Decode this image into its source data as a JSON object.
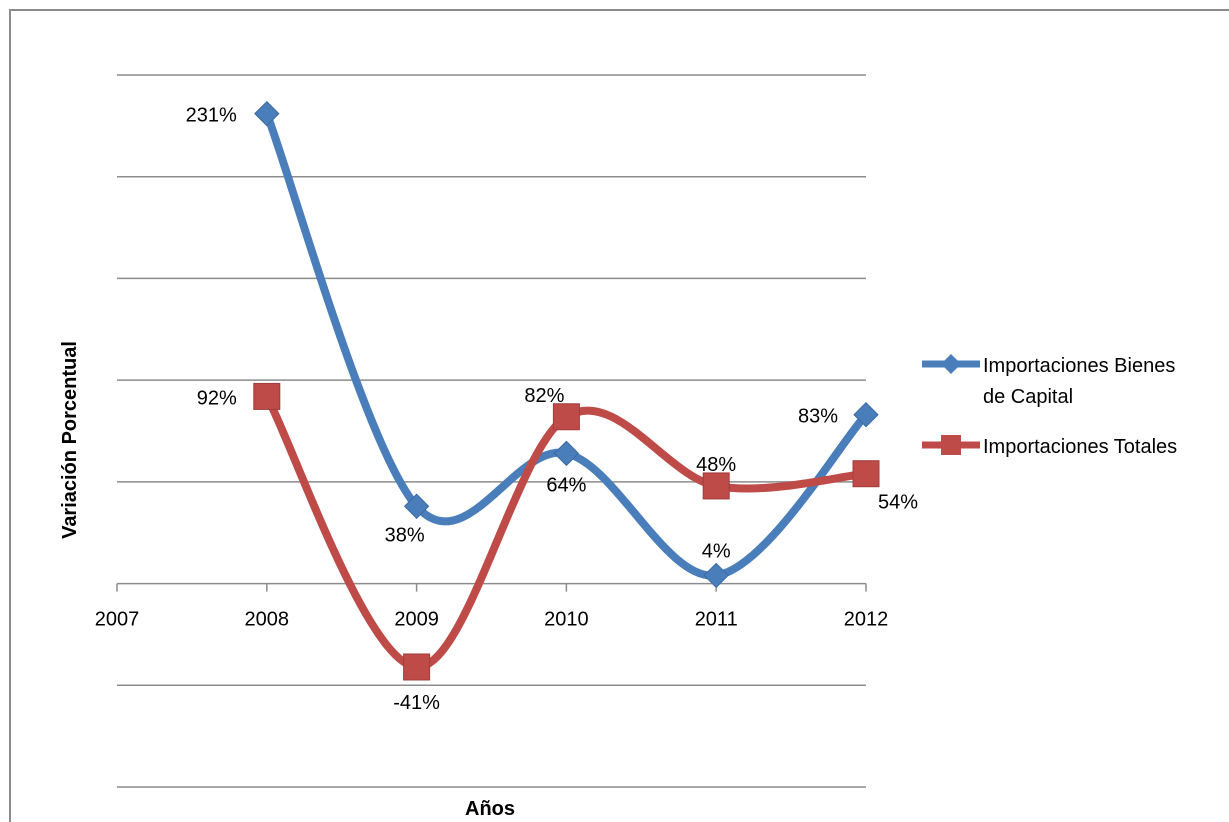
{
  "chart_data": {
    "type": "line",
    "xlabel": "Años",
    "ylabel": "Variación Porcentual",
    "x": [
      2007,
      2008,
      2009,
      2010,
      2011,
      2012
    ],
    "series": [
      {
        "name": "Importaciones Bienes de Capital",
        "name_lines": [
          "Importaciones Bienes",
          "de Capital"
        ],
        "color": "#4a7ebb",
        "marker": "diamond",
        "points": [
          {
            "x": 2008,
            "y": 231,
            "label": "231%"
          },
          {
            "x": 2009,
            "y": 38,
            "label": "38%"
          },
          {
            "x": 2010,
            "y": 64,
            "label": "64%"
          },
          {
            "x": 2011,
            "y": 4,
            "label": "4%"
          },
          {
            "x": 2012,
            "y": 83,
            "label": "83%"
          }
        ]
      },
      {
        "name": "Importaciones Totales",
        "color": "#be4b48",
        "marker": "square",
        "points": [
          {
            "x": 2008,
            "y": 92,
            "label": "92%"
          },
          {
            "x": 2009,
            "y": -41,
            "label": "-41%"
          },
          {
            "x": 2010,
            "y": 82,
            "label": "82%"
          },
          {
            "x": 2011,
            "y": 48,
            "label": "48%"
          },
          {
            "x": 2012,
            "y": 54,
            "label": "54%"
          }
        ]
      }
    ],
    "ylim": [
      -100,
      250
    ],
    "y_gridlines": [
      -100,
      -50,
      50,
      100,
      150,
      200,
      250
    ],
    "x_axis_crosses_at": 0,
    "x_tick_labels": [
      "2007",
      "2008",
      "2009",
      "2010",
      "2011",
      "2012"
    ],
    "y_tick_labels_shown": false,
    "grid": true,
    "legend_position": "right",
    "smoothed": true
  }
}
